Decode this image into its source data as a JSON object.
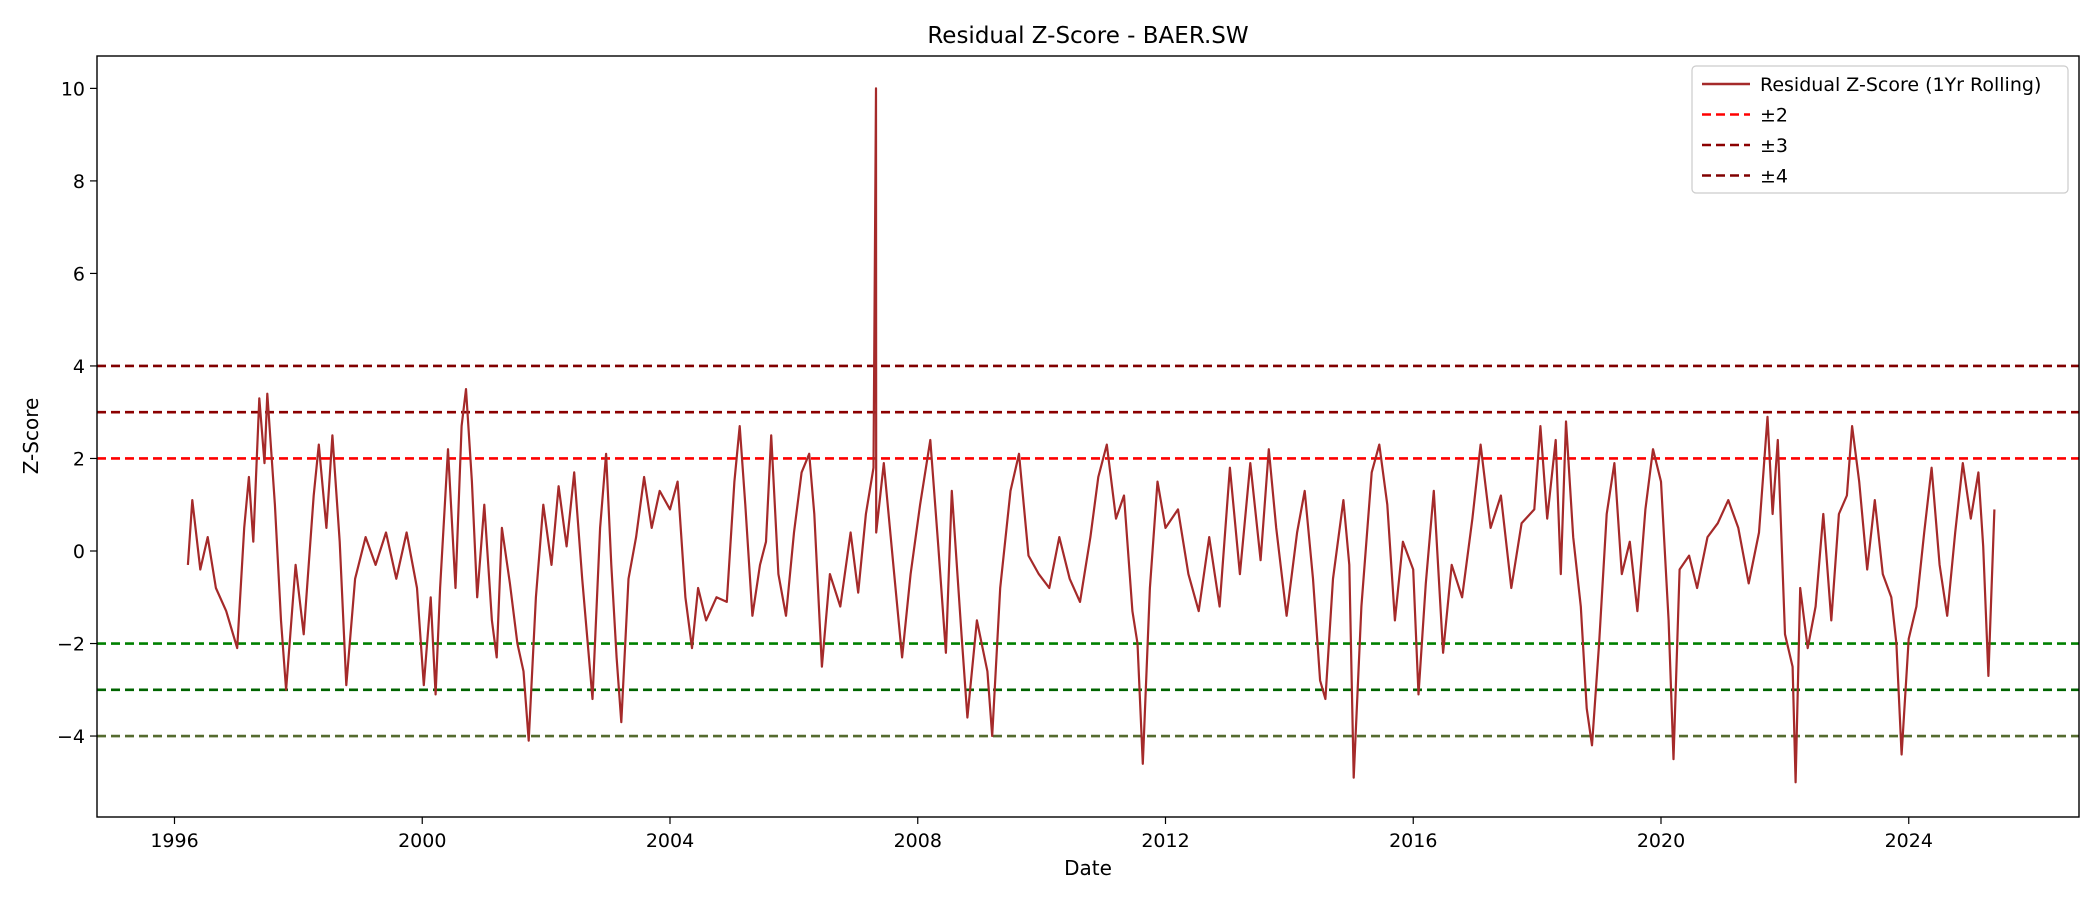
{
  "chart_data": {
    "type": "line",
    "title": "Residual Z-Score - BAER.SW",
    "xlabel": "Date",
    "ylabel": "Z-Score",
    "xlim": [
      "1994-10-01",
      "2026-10-01"
    ],
    "ylim": [
      -5.75,
      10.7
    ],
    "grid": false,
    "legend_position": "top-right",
    "x_ticks": [
      {
        "value": "1996-01-01",
        "label": "1996"
      },
      {
        "value": "2000-01-01",
        "label": "2000"
      },
      {
        "value": "2004-01-01",
        "label": "2004"
      },
      {
        "value": "2008-01-01",
        "label": "2008"
      },
      {
        "value": "2012-01-01",
        "label": "2012"
      },
      {
        "value": "2016-01-01",
        "label": "2016"
      },
      {
        "value": "2020-01-01",
        "label": "2020"
      },
      {
        "value": "2024-01-01",
        "label": "2024"
      }
    ],
    "y_ticks": [
      {
        "value": -4,
        "label": "−4"
      },
      {
        "value": -2,
        "label": "−2"
      },
      {
        "value": 0,
        "label": "0"
      },
      {
        "value": 2,
        "label": "2"
      },
      {
        "value": 4,
        "label": "4"
      },
      {
        "value": 6,
        "label": "6"
      },
      {
        "value": 8,
        "label": "8"
      },
      {
        "value": 10,
        "label": "10"
      }
    ],
    "series": [
      {
        "name": "Residual Z-Score (1Yr Rolling)",
        "color": "#a52a2a",
        "style": "solid",
        "points": [
          [
            "1996-03-20",
            -0.3
          ],
          [
            "1996-04-15",
            1.1
          ],
          [
            "1996-06-01",
            -0.4
          ],
          [
            "1996-07-15",
            0.3
          ],
          [
            "1996-09-01",
            -0.8
          ],
          [
            "1996-11-01",
            -1.3
          ],
          [
            "1997-01-05",
            -2.1
          ],
          [
            "1997-02-15",
            0.5
          ],
          [
            "1997-03-15",
            1.6
          ],
          [
            "1997-04-10",
            0.2
          ],
          [
            "1997-05-15",
            3.3
          ],
          [
            "1997-06-15",
            1.9
          ],
          [
            "1997-07-01",
            3.4
          ],
          [
            "1997-08-15",
            1.0
          ],
          [
            "1997-09-20",
            -1.5
          ],
          [
            "1997-10-20",
            -3.0
          ],
          [
            "1997-12-15",
            -0.3
          ],
          [
            "1998-02-01",
            -1.8
          ],
          [
            "1998-04-01",
            1.2
          ],
          [
            "1998-05-01",
            2.3
          ],
          [
            "1998-06-15",
            0.5
          ],
          [
            "1998-07-20",
            2.5
          ],
          [
            "1998-09-01",
            0.2
          ],
          [
            "1998-10-10",
            -2.9
          ],
          [
            "1998-12-01",
            -0.6
          ],
          [
            "1999-02-01",
            0.3
          ],
          [
            "1999-04-01",
            -0.3
          ],
          [
            "1999-06-01",
            0.4
          ],
          [
            "1999-08-01",
            -0.6
          ],
          [
            "1999-10-01",
            0.4
          ],
          [
            "1999-12-01",
            -0.8
          ],
          [
            "2000-01-10",
            -2.9
          ],
          [
            "2000-02-20",
            -1.0
          ],
          [
            "2000-03-20",
            -3.1
          ],
          [
            "2000-04-15",
            -0.8
          ],
          [
            "2000-06-01",
            2.2
          ],
          [
            "2000-07-15",
            -0.8
          ],
          [
            "2000-08-20",
            2.7
          ],
          [
            "2000-09-15",
            3.5
          ],
          [
            "2000-10-20",
            1.5
          ],
          [
            "2000-11-20",
            -1.0
          ],
          [
            "2001-01-01",
            1.0
          ],
          [
            "2001-02-15",
            -1.5
          ],
          [
            "2001-03-15",
            -2.3
          ],
          [
            "2001-04-15",
            0.5
          ],
          [
            "2001-06-01",
            -0.7
          ],
          [
            "2001-07-15",
            -2.0
          ],
          [
            "2001-08-20",
            -2.6
          ],
          [
            "2001-09-20",
            -4.1
          ],
          [
            "2001-11-01",
            -1.0
          ],
          [
            "2001-12-15",
            1.0
          ],
          [
            "2002-02-01",
            -0.3
          ],
          [
            "2002-03-15",
            1.4
          ],
          [
            "2002-05-01",
            0.1
          ],
          [
            "2002-06-15",
            1.7
          ],
          [
            "2002-08-01",
            -0.6
          ],
          [
            "2002-10-01",
            -3.2
          ],
          [
            "2002-11-15",
            0.5
          ],
          [
            "2002-12-20",
            2.1
          ],
          [
            "2003-01-20",
            -0.3
          ],
          [
            "2003-02-20",
            -2.3
          ],
          [
            "2003-03-20",
            -3.7
          ],
          [
            "2003-05-01",
            -0.6
          ],
          [
            "2003-06-15",
            0.3
          ],
          [
            "2003-08-01",
            1.6
          ],
          [
            "2003-09-15",
            0.5
          ],
          [
            "2003-11-01",
            1.3
          ],
          [
            "2004-01-01",
            0.9
          ],
          [
            "2004-02-15",
            1.5
          ],
          [
            "2004-04-01",
            -1.0
          ],
          [
            "2004-05-10",
            -2.1
          ],
          [
            "2004-06-15",
            -0.8
          ],
          [
            "2004-08-01",
            -1.5
          ],
          [
            "2004-10-01",
            -1.0
          ],
          [
            "2004-12-01",
            -1.1
          ],
          [
            "2005-01-15",
            1.5
          ],
          [
            "2005-02-15",
            2.7
          ],
          [
            "2005-03-20",
            1.0
          ],
          [
            "2005-05-01",
            -1.4
          ],
          [
            "2005-06-15",
            -0.3
          ],
          [
            "2005-07-20",
            0.2
          ],
          [
            "2005-08-20",
            2.5
          ],
          [
            "2005-10-01",
            -0.5
          ],
          [
            "2005-11-15",
            -1.4
          ],
          [
            "2006-01-01",
            0.4
          ],
          [
            "2006-02-15",
            1.7
          ],
          [
            "2006-04-01",
            2.1
          ],
          [
            "2006-05-01",
            0.8
          ],
          [
            "2006-06-15",
            -2.5
          ],
          [
            "2006-08-01",
            -0.5
          ],
          [
            "2006-10-01",
            -1.2
          ],
          [
            "2006-12-01",
            0.4
          ],
          [
            "2007-01-15",
            -0.9
          ],
          [
            "2007-03-01",
            0.8
          ],
          [
            "2007-04-15",
            1.8
          ],
          [
            "2007-04-30",
            10.0
          ],
          [
            "2007-05-01",
            0.4
          ],
          [
            "2007-06-15",
            1.9
          ],
          [
            "2007-08-15",
            -0.5
          ],
          [
            "2007-10-01",
            -2.3
          ],
          [
            "2007-11-20",
            -0.5
          ],
          [
            "2008-01-15",
            1.0
          ],
          [
            "2008-03-15",
            2.4
          ],
          [
            "2008-05-01",
            0.1
          ],
          [
            "2008-06-15",
            -2.2
          ],
          [
            "2008-07-20",
            1.3
          ],
          [
            "2008-09-15",
            -1.8
          ],
          [
            "2008-10-20",
            -3.6
          ],
          [
            "2008-12-15",
            -1.5
          ],
          [
            "2009-02-15",
            -2.6
          ],
          [
            "2009-03-15",
            -4.0
          ],
          [
            "2009-05-01",
            -0.8
          ],
          [
            "2009-07-01",
            1.3
          ],
          [
            "2009-08-20",
            2.1
          ],
          [
            "2009-10-15",
            -0.1
          ],
          [
            "2009-12-15",
            -0.5
          ],
          [
            "2010-02-15",
            -0.8
          ],
          [
            "2010-04-15",
            0.3
          ],
          [
            "2010-06-15",
            -0.6
          ],
          [
            "2010-08-15",
            -1.1
          ],
          [
            "2010-10-15",
            0.3
          ],
          [
            "2010-12-01",
            1.6
          ],
          [
            "2011-01-20",
            2.3
          ],
          [
            "2011-03-15",
            0.7
          ],
          [
            "2011-05-01",
            1.2
          ],
          [
            "2011-06-20",
            -1.3
          ],
          [
            "2011-07-20",
            -2.0
          ],
          [
            "2011-08-20",
            -4.6
          ],
          [
            "2011-10-01",
            -0.8
          ],
          [
            "2011-11-15",
            1.5
          ],
          [
            "2012-01-01",
            0.5
          ],
          [
            "2012-03-15",
            0.9
          ],
          [
            "2012-05-15",
            -0.5
          ],
          [
            "2012-07-15",
            -1.3
          ],
          [
            "2012-09-15",
            0.3
          ],
          [
            "2012-11-15",
            -1.2
          ],
          [
            "2013-01-15",
            1.8
          ],
          [
            "2013-03-15",
            -0.5
          ],
          [
            "2013-05-15",
            1.9
          ],
          [
            "2013-07-15",
            -0.2
          ],
          [
            "2013-09-01",
            2.2
          ],
          [
            "2013-10-15",
            0.5
          ],
          [
            "2013-12-15",
            -1.4
          ],
          [
            "2014-02-15",
            0.4
          ],
          [
            "2014-04-01",
            1.3
          ],
          [
            "2014-05-20",
            -0.6
          ],
          [
            "2014-07-01",
            -2.8
          ],
          [
            "2014-08-01",
            -3.2
          ],
          [
            "2014-09-15",
            -0.6
          ],
          [
            "2014-11-15",
            1.1
          ],
          [
            "2014-12-20",
            -0.3
          ],
          [
            "2015-01-15",
            -4.9
          ],
          [
            "2015-03-01",
            -1.2
          ],
          [
            "2015-05-01",
            1.7
          ],
          [
            "2015-06-15",
            2.3
          ],
          [
            "2015-08-01",
            1.0
          ],
          [
            "2015-09-15",
            -1.5
          ],
          [
            "2015-11-01",
            0.2
          ],
          [
            "2016-01-01",
            -0.4
          ],
          [
            "2016-02-01",
            -3.1
          ],
          [
            "2016-03-15",
            -0.7
          ],
          [
            "2016-05-01",
            1.3
          ],
          [
            "2016-06-25",
            -2.2
          ],
          [
            "2016-08-15",
            -0.3
          ],
          [
            "2016-10-15",
            -1.0
          ],
          [
            "2016-12-15",
            0.7
          ],
          [
            "2017-02-01",
            2.3
          ],
          [
            "2017-04-01",
            0.5
          ],
          [
            "2017-06-01",
            1.2
          ],
          [
            "2017-08-01",
            -0.8
          ],
          [
            "2017-10-01",
            0.6
          ],
          [
            "2017-12-15",
            0.9
          ],
          [
            "2018-01-20",
            2.7
          ],
          [
            "2018-03-01",
            0.7
          ],
          [
            "2018-04-20",
            2.4
          ],
          [
            "2018-05-20",
            -0.5
          ],
          [
            "2018-06-20",
            2.8
          ],
          [
            "2018-08-01",
            0.3
          ],
          [
            "2018-09-15",
            -1.2
          ],
          [
            "2018-10-20",
            -3.4
          ],
          [
            "2018-11-20",
            -4.2
          ],
          [
            "2019-01-01",
            -2.0
          ],
          [
            "2019-02-15",
            0.8
          ],
          [
            "2019-04-01",
            1.9
          ],
          [
            "2019-05-15",
            -0.5
          ],
          [
            "2019-07-01",
            0.2
          ],
          [
            "2019-08-15",
            -1.3
          ],
          [
            "2019-10-01",
            0.9
          ],
          [
            "2019-11-15",
            2.2
          ],
          [
            "2020-01-01",
            1.5
          ],
          [
            "2020-02-15",
            -1.5
          ],
          [
            "2020-03-15",
            -4.5
          ],
          [
            "2020-04-20",
            -0.4
          ],
          [
            "2020-06-15",
            -0.1
          ],
          [
            "2020-08-01",
            -0.8
          ],
          [
            "2020-10-01",
            0.3
          ],
          [
            "2020-12-01",
            0.6
          ],
          [
            "2021-02-01",
            1.1
          ],
          [
            "2021-04-01",
            0.5
          ],
          [
            "2021-06-01",
            -0.7
          ],
          [
            "2021-08-01",
            0.4
          ],
          [
            "2021-09-20",
            2.9
          ],
          [
            "2021-10-20",
            0.8
          ],
          [
            "2021-11-20",
            2.4
          ],
          [
            "2022-01-01",
            -1.8
          ],
          [
            "2022-02-15",
            -2.5
          ],
          [
            "2022-03-05",
            -5.0
          ],
          [
            "2022-04-01",
            -0.8
          ],
          [
            "2022-05-15",
            -2.1
          ],
          [
            "2022-07-01",
            -1.2
          ],
          [
            "2022-08-15",
            0.8
          ],
          [
            "2022-10-01",
            -1.5
          ],
          [
            "2022-11-15",
            0.8
          ],
          [
            "2023-01-01",
            1.2
          ],
          [
            "2023-02-01",
            2.7
          ],
          [
            "2023-03-15",
            1.5
          ],
          [
            "2023-05-01",
            -0.4
          ],
          [
            "2023-06-15",
            1.1
          ],
          [
            "2023-08-01",
            -0.5
          ],
          [
            "2023-09-20",
            -1.0
          ],
          [
            "2023-10-20",
            -2.0
          ],
          [
            "2023-11-20",
            -4.4
          ],
          [
            "2024-01-01",
            -1.9
          ],
          [
            "2024-02-15",
            -1.2
          ],
          [
            "2024-04-01",
            0.4
          ],
          [
            "2024-05-15",
            1.8
          ],
          [
            "2024-07-01",
            -0.3
          ],
          [
            "2024-08-15",
            -1.4
          ],
          [
            "2024-10-01",
            0.4
          ],
          [
            "2024-11-15",
            1.9
          ],
          [
            "2025-01-01",
            0.7
          ],
          [
            "2025-02-15",
            1.7
          ],
          [
            "2025-03-15",
            0.1
          ],
          [
            "2025-04-15",
            -2.7
          ],
          [
            "2025-05-20",
            0.9
          ]
        ]
      }
    ],
    "hlines": [
      {
        "y": 2,
        "color": "#ff0000",
        "style": "dashed",
        "legend": "±2"
      },
      {
        "y": -2,
        "color": "#008000",
        "style": "dashed",
        "legend": null
      },
      {
        "y": 3,
        "color": "#8b0000",
        "style": "dashed",
        "legend": "±3"
      },
      {
        "y": -3,
        "color": "#006400",
        "style": "dashed",
        "legend": null
      },
      {
        "y": 4,
        "color": "#800000",
        "style": "dashed",
        "legend": "±4"
      },
      {
        "y": -4,
        "color": "#556b2f",
        "style": "dashed",
        "legend": null
      }
    ],
    "legend": [
      {
        "label": "Residual Z-Score (1Yr Rolling)",
        "color": "#a52a2a",
        "style": "solid"
      },
      {
        "label": "±2",
        "color": "#ff0000",
        "style": "dashed"
      },
      {
        "label": "±3",
        "color": "#8b0000",
        "style": "dashed"
      },
      {
        "label": "±4",
        "color": "#800000",
        "style": "dashed"
      }
    ]
  }
}
